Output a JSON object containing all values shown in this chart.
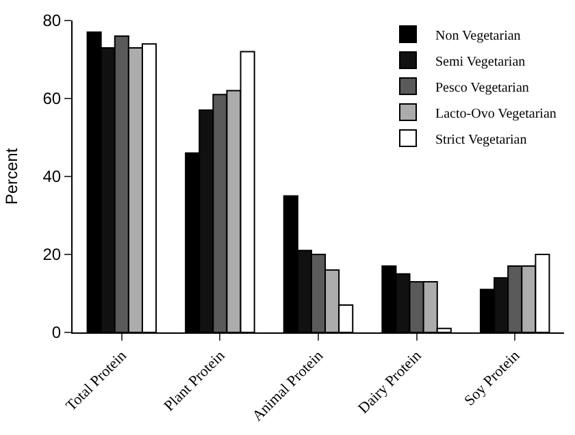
{
  "chart_data": {
    "type": "bar",
    "ylabel": "Percent",
    "categories": [
      "Total Protein",
      "Plant Protein",
      "Animal Protein",
      "Dairy Protein",
      "Soy Protein"
    ],
    "series": [
      {
        "name": "Non Vegetarian",
        "color": "#000000",
        "values": [
          77,
          46,
          35,
          17,
          11
        ]
      },
      {
        "name": "Semi Vegetarian",
        "color": "#111111",
        "values": [
          73,
          57,
          21,
          15,
          14
        ]
      },
      {
        "name": "Pesco Vegetarian",
        "color": "#5a5a5a",
        "values": [
          76,
          61,
          20,
          13,
          17
        ]
      },
      {
        "name": "Lacto-Ovo Vegetarian",
        "color": "#acacac",
        "values": [
          73,
          62,
          16,
          13,
          17
        ]
      },
      {
        "name": "Strict Vegetarian",
        "color": "#ffffff",
        "values": [
          74,
          72,
          7,
          1,
          20
        ]
      }
    ],
    "ylim": [
      0,
      80
    ],
    "yticks": [
      0,
      20,
      40,
      60,
      80
    ],
    "legend": "top right"
  }
}
